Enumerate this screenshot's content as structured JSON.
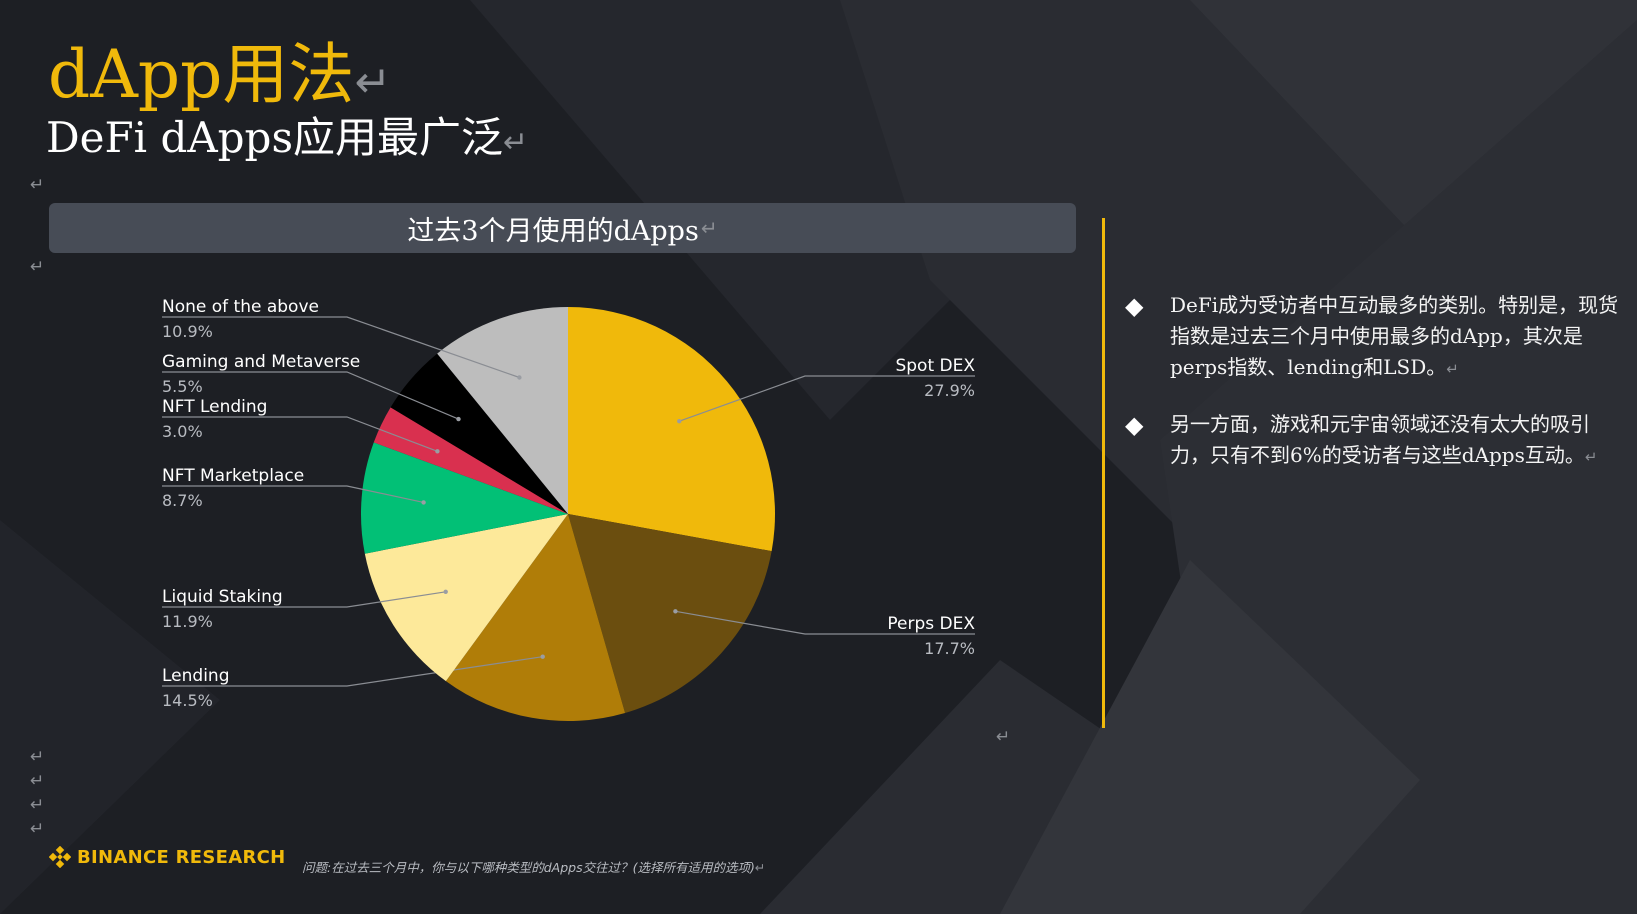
{
  "title": "dApp用法",
  "subtitle": "DeFi dApps应用最广泛",
  "return_mark": "↵",
  "chart_header": "过去3个月使用的dApps",
  "colors": {
    "accent": "#f0b90b",
    "background": "#1d1f24",
    "header_bar": "#474c56"
  },
  "chart_data": {
    "type": "pie",
    "title": "过去3个月使用的dApps",
    "slices": [
      {
        "label": "Spot DEX",
        "value": 27.9,
        "display": "27.9%",
        "color": "#f0b90b"
      },
      {
        "label": "Perps DEX",
        "value": 17.7,
        "display": "17.7%",
        "color": "#6b4e0f"
      },
      {
        "label": "Lending",
        "value": 14.5,
        "display": "14.5%",
        "color": "#b07d08"
      },
      {
        "label": "Liquid Staking",
        "value": 11.9,
        "display": "11.9%",
        "color": "#fde99a"
      },
      {
        "label": "NFT Marketplace",
        "value": 8.7,
        "display": "8.7%",
        "color": "#02c076"
      },
      {
        "label": "NFT Lending",
        "value": 3.0,
        "display": "3.0%",
        "color": "#d9304f"
      },
      {
        "label": "Gaming and Metaverse",
        "value": 5.5,
        "display": "5.5%",
        "color": "#000000"
      },
      {
        "label": "None of the above",
        "value": 10.9,
        "display": "10.9%",
        "color": "#bdbdbd"
      }
    ],
    "start_angle": "12 o'clock",
    "direction": "clockwise"
  },
  "bullets": [
    {
      "text": "DeFi成为受访者中互动最多的类别。特别是，现货指数是过去三个月中使用最多的dApp，其次是perps指数、lending和LSD。",
      "icon": "diamond-icon"
    },
    {
      "text": "另一方面，游戏和元宇宙领域还没有太大的吸引力，只有不到6%的受访者与这些dApps互动。",
      "icon": "diamond-icon"
    }
  ],
  "logo": "BINANCE RESEARCH",
  "footnote": "问题:在过去三个月中，你与以下哪种类型的dApps交往过？(选择所有适用的选项)"
}
